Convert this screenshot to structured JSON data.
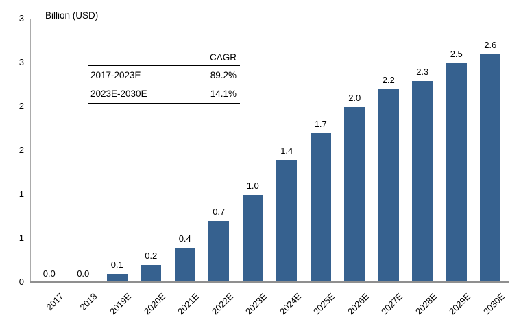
{
  "chart": {
    "bar_color": "#36618F",
    "axis_color": "#ababab",
    "baseline_color": "#8f8f8f",
    "text_color": "#000000",
    "background_color": "#ffffff"
  },
  "chart_data": {
    "type": "bar",
    "title": "Billion (USD)",
    "categories": [
      "2017",
      "2018",
      "2019E",
      "2020E",
      "2021E",
      "2022E",
      "2023E",
      "2024E",
      "2025E",
      "2026E",
      "2027E",
      "2028E",
      "2029E",
      "2030E"
    ],
    "values": [
      0.0,
      0.0,
      0.1,
      0.2,
      0.4,
      0.7,
      1.0,
      1.4,
      1.7,
      2.0,
      2.2,
      2.3,
      2.5,
      2.6
    ],
    "data_labels": [
      "0.0",
      "0.0",
      "0.1",
      "0.2",
      "0.4",
      "0.7",
      "1.0",
      "1.4",
      "1.7",
      "2.0",
      "2.2",
      "2.3",
      "2.5",
      "2.6"
    ],
    "ylabel": "Billion (USD)",
    "xlabel": "",
    "ylim": [
      0,
      3
    ],
    "ytick_interval": 0.5,
    "yticks": [
      {
        "value": 3.0,
        "label": "3"
      },
      {
        "value": 2.5,
        "label": "3"
      },
      {
        "value": 2.0,
        "label": "2"
      },
      {
        "value": 1.5,
        "label": "2"
      },
      {
        "value": 1.0,
        "label": "1"
      },
      {
        "value": 0.5,
        "label": "1"
      },
      {
        "value": 0.0,
        "label": "0"
      }
    ],
    "grid": false,
    "legend_position": "none",
    "x_tick_rotation_deg": -45
  },
  "cagr_table": {
    "header": "CAGR",
    "rows": [
      {
        "period": "2017-2023E",
        "value": "89.2%"
      },
      {
        "period": "2023E-2030E",
        "value": "14.1%"
      }
    ]
  }
}
